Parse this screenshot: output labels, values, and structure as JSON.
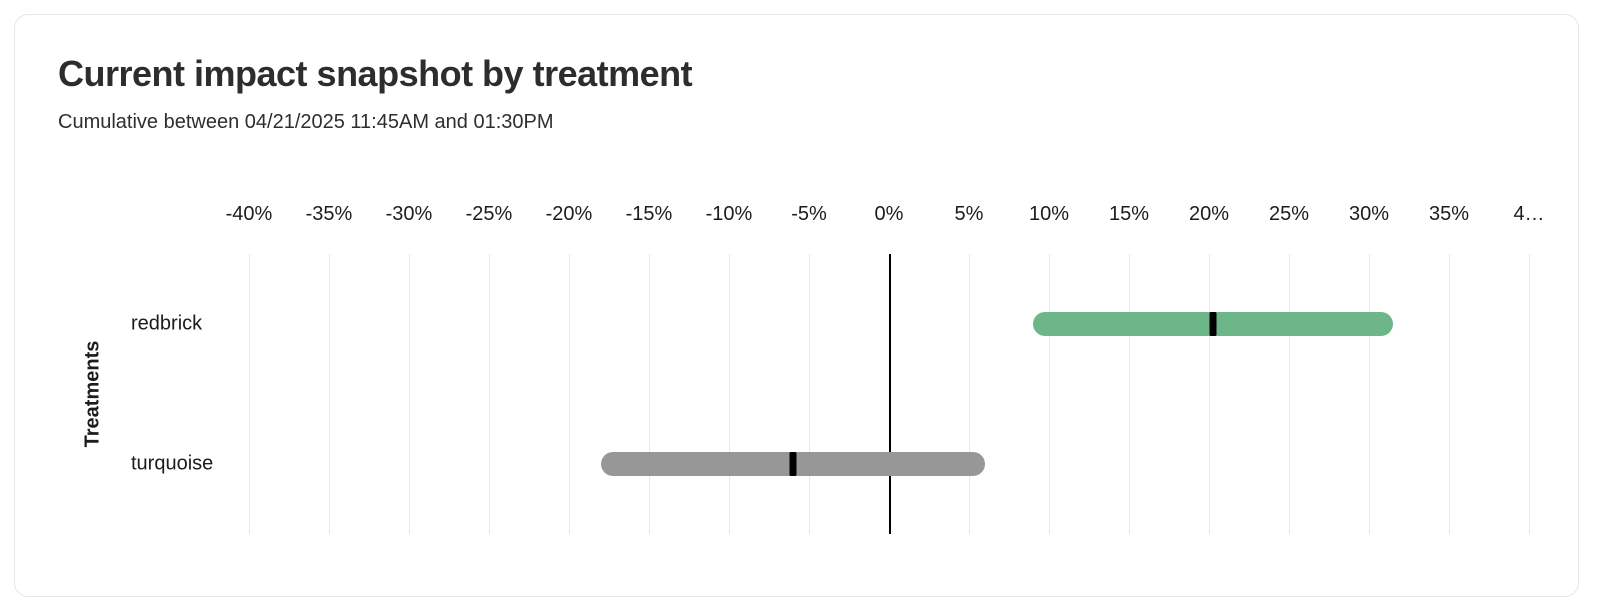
{
  "card": {
    "title": "Current impact snapshot by treatment",
    "subtitle": "Cumulative between 04/21/2025 11:45AM and 01:30PM"
  },
  "chart_data": {
    "type": "bar",
    "subtype": "horizontal_range_bar",
    "title": "Current impact snapshot by treatment",
    "subtitle": "Cumulative between 04/21/2025 11:45AM and 01:30PM",
    "xlabel": "",
    "ylabel": "Treatments",
    "xlim": [
      -40,
      40
    ],
    "x_tick_step_pct": 5,
    "x_tick_labels": [
      "-40%",
      "-35%",
      "-30%",
      "-25%",
      "-20%",
      "-15%",
      "-10%",
      "-5%",
      "0%",
      "5%",
      "10%",
      "15%",
      "20%",
      "25%",
      "30%",
      "35%",
      "4…"
    ],
    "grid": "vertical",
    "zero_line": true,
    "legend": "none",
    "categories": [
      "redbrick",
      "turquoise"
    ],
    "series": [
      {
        "name": "redbrick",
        "range_low_pct": 9,
        "range_high_pct": 31.5,
        "point_pct": 20.25,
        "color": "#6db68a"
      },
      {
        "name": "turquoise",
        "range_low_pct": -18,
        "range_high_pct": 6,
        "point_pct": -6,
        "color": "#979797"
      }
    ],
    "marker_color": "#000000"
  },
  "colors": {
    "card_border": "#e6e6e9",
    "gridline": "#e8e8e8",
    "zero_line": "#000000",
    "text_primary": "#2d2d2d",
    "text_axis": "#1c1c1c"
  }
}
